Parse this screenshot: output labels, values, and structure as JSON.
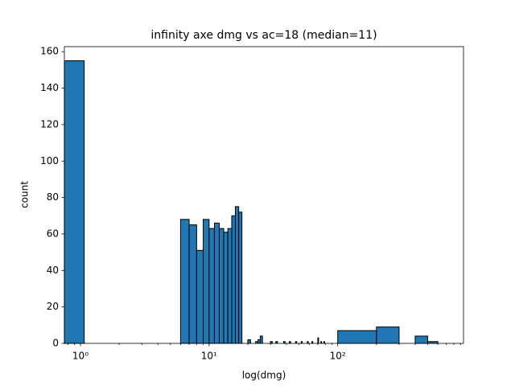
{
  "chart_data": {
    "type": "histogram",
    "title": "infinity axe dmg vs ac=18 (median=11)",
    "x_label": "log(dmg)",
    "y_label": "count",
    "bins": [
      0.75,
      1.07,
      6,
      7,
      8,
      9,
      10,
      11,
      12,
      13,
      14,
      15,
      16,
      17,
      18,
      20,
      21,
      23,
      24,
      25,
      26,
      30,
      31,
      33,
      34,
      38,
      39,
      42,
      43,
      47,
      48,
      52,
      53,
      58,
      59,
      63,
      64,
      70,
      71,
      74,
      75,
      78,
      79,
      100,
      200,
      300,
      400,
      500,
      600
    ],
    "values": [
      155,
      0,
      68,
      65,
      51,
      68,
      63,
      66,
      63,
      61,
      63,
      70,
      75,
      72,
      0,
      2,
      0,
      1,
      2,
      4,
      0,
      1,
      0,
      1,
      0,
      1,
      0,
      1,
      0,
      1,
      0,
      1,
      0,
      1,
      0,
      1,
      0,
      3,
      0,
      1,
      0,
      1,
      0,
      7,
      9,
      0,
      4,
      1
    ],
    "color": "#1f77b4",
    "edgecolor": "#000000",
    "xscale": "log",
    "xlim": [
      0.75,
      950
    ],
    "xticks": [
      {
        "value": 1,
        "label": "10⁰"
      },
      {
        "value": 10,
        "label": "10¹"
      },
      {
        "value": 100,
        "label": "10²"
      }
    ],
    "xminorticks": [
      0.8,
      0.9,
      2,
      3,
      4,
      5,
      6,
      7,
      8,
      9,
      20,
      30,
      40,
      50,
      60,
      70,
      80,
      90,
      200,
      300,
      400,
      500,
      600,
      700,
      800,
      900
    ],
    "ylim": [
      0,
      162.75
    ],
    "yticks": [
      0,
      20,
      40,
      60,
      80,
      100,
      120,
      140,
      160
    ],
    "grid": false
  }
}
